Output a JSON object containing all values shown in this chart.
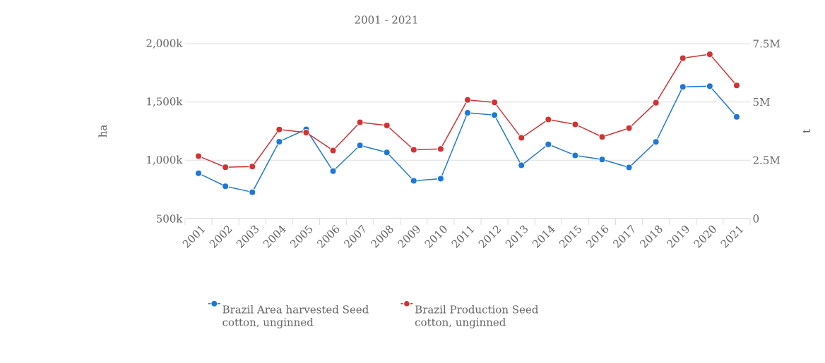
{
  "chart_data": {
    "type": "line",
    "subtitle": "2001 - 2021",
    "ylabel": "ha",
    "y2label": "t",
    "categories": [
      "2001",
      "2002",
      "2003",
      "2004",
      "2005",
      "2006",
      "2007",
      "2008",
      "2009",
      "2010",
      "2011",
      "2012",
      "2013",
      "2014",
      "2015",
      "2016",
      "2017",
      "2018",
      "2019",
      "2020",
      "2021"
    ],
    "series": [
      {
        "name": "Brazil Area harvested Seed cotton, unginned",
        "color": "#1f77d6",
        "values": [
          888000,
          777000,
          726000,
          1160000,
          1265000,
          907000,
          1128000,
          1067000,
          824000,
          842000,
          1407000,
          1387000,
          956000,
          1137000,
          1042000,
          1006000,
          938000,
          1158000,
          1630000,
          1636000,
          1373000
        ]
      },
      {
        "name": "Brazil Production Seed cotton, unginned",
        "color": "#d33232",
        "axis": "y2",
        "values": [
          2680000,
          2200000,
          2230000,
          3820000,
          3690000,
          2920000,
          4130000,
          3990000,
          2950000,
          2990000,
          5090000,
          4980000,
          3460000,
          4250000,
          4040000,
          3500000,
          3880000,
          4970000,
          6880000,
          7050000,
          5710000
        ]
      }
    ],
    "ylim": [
      500000,
      2000000
    ],
    "yticks": [
      {
        "value": 500000,
        "label": "500k"
      },
      {
        "value": 1000000,
        "label": "1,000k"
      },
      {
        "value": 1500000,
        "label": "1,500k"
      },
      {
        "value": 2000000,
        "label": "2,000k"
      }
    ],
    "y2lim": [
      0,
      7500000
    ],
    "y2ticks": [
      0,
      {
        "value": 2500000,
        "label": "2.5M"
      },
      {
        "value": 5000000,
        "label": "5M"
      },
      {
        "value": 7500000,
        "label": "7.5M"
      }
    ],
    "grid": "y",
    "legend": "bottom",
    "marker": "circle",
    "line_style": "solid"
  }
}
